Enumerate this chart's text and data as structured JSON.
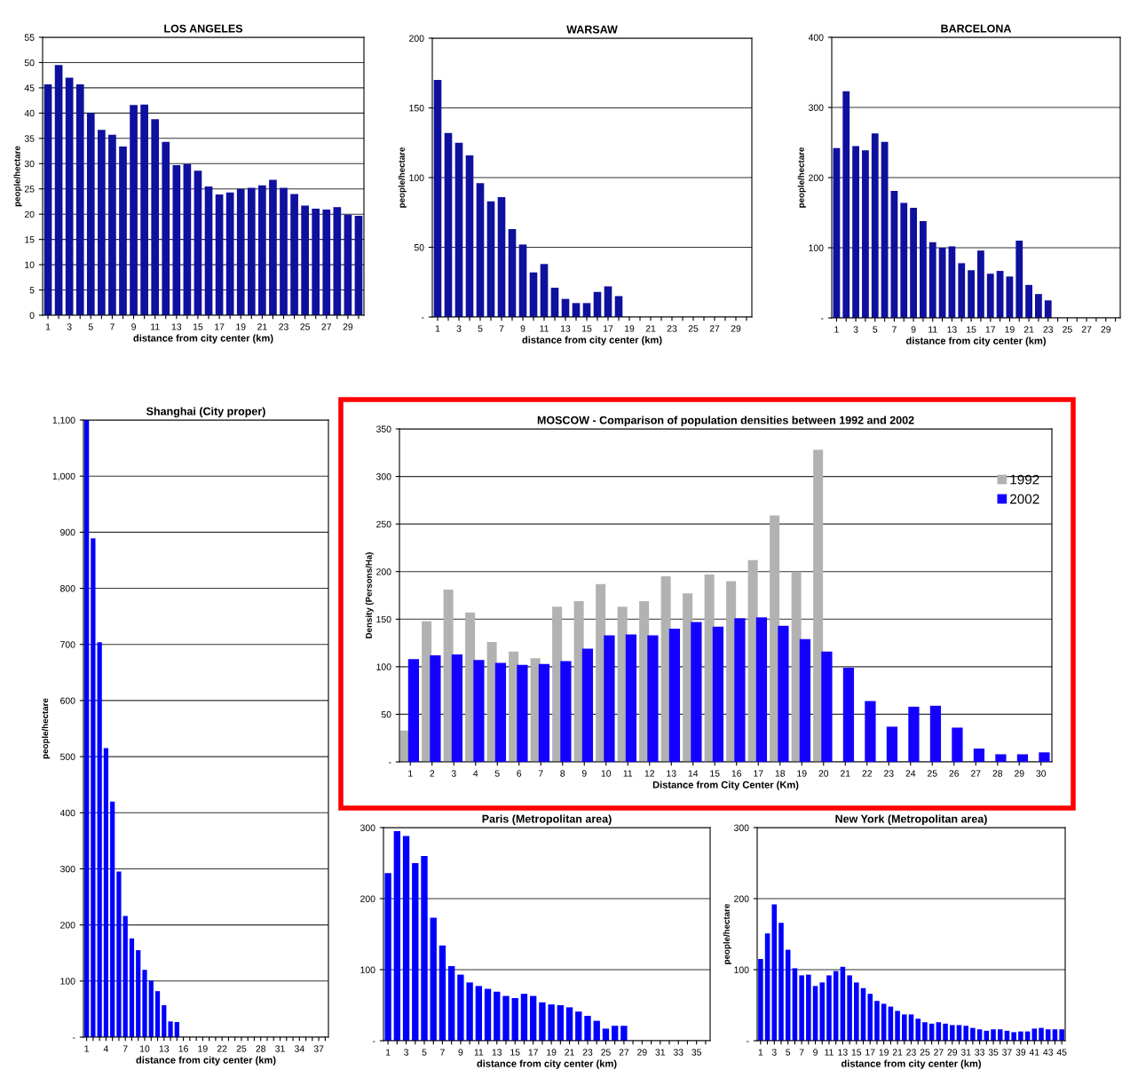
{
  "chart_data": [
    {
      "type": "bar",
      "title": "LOS ANGELES",
      "xlabel": "distance from city center (km)",
      "ylabel": "people/hectare",
      "color": "#10109e",
      "categories": [
        "1",
        null,
        "3",
        null,
        "5",
        null,
        "7",
        null,
        "9",
        null,
        "11",
        null,
        "13",
        null,
        "15",
        null,
        "17",
        null,
        "19",
        null,
        "21",
        null,
        "23",
        null,
        "25",
        null,
        "27",
        null,
        "29",
        null
      ],
      "values": [
        45.7,
        49.5,
        47,
        45.7,
        40,
        36.7,
        35.7,
        33.4,
        41.6,
        41.7,
        38.8,
        34.3,
        29.7,
        29.9,
        28.6,
        25.5,
        23.9,
        24.3,
        25,
        25.2,
        25.7,
        26.8,
        25.2,
        24,
        21.7,
        21.1,
        20.9,
        21.4,
        19.9,
        19.7
      ],
      "ylim": [
        0,
        55
      ],
      "yticks": [
        0,
        5,
        10,
        15,
        20,
        25,
        30,
        35,
        40,
        45,
        50,
        55
      ],
      "grid": "y"
    },
    {
      "type": "bar",
      "title": "WARSAW",
      "xlabel": "distance from city center (km)",
      "ylabel": "people/hectare",
      "color": "#10109e",
      "categories": [
        "1",
        null,
        "3",
        null,
        "5",
        null,
        "7",
        null,
        "9",
        null,
        "11",
        null,
        "13",
        null,
        "15",
        null,
        "17",
        null,
        "19",
        null,
        "21",
        null,
        "23",
        null,
        "25",
        null,
        "27",
        null,
        "29",
        null
      ],
      "values": [
        170,
        132,
        125,
        116,
        96,
        83,
        86,
        63,
        52,
        32,
        38,
        21,
        13,
        10,
        10,
        18,
        22,
        15,
        0,
        0,
        0,
        0,
        0,
        0,
        0,
        0,
        0,
        0,
        0,
        0
      ],
      "ylim": [
        0,
        200
      ],
      "yticks": [
        {
          "value": 0,
          "label": "-"
        },
        50,
        100,
        150,
        200
      ],
      "grid": "y"
    },
    {
      "type": "bar",
      "title": "BARCELONA",
      "xlabel": "distance from city center (km)",
      "ylabel": "people/hectare",
      "color": "#10109e",
      "categories": [
        "1",
        null,
        "3",
        null,
        "5",
        null,
        "7",
        null,
        "9",
        null,
        "11",
        null,
        "13",
        null,
        "15",
        null,
        "17",
        null,
        "19",
        null,
        "21",
        null,
        "23",
        null,
        "25",
        null,
        "27",
        null,
        "29",
        null
      ],
      "values": [
        242,
        323,
        245,
        239,
        263,
        251,
        181,
        164,
        157,
        138,
        108,
        100,
        102,
        78,
        68,
        96,
        63,
        67,
        59,
        110,
        47,
        34,
        25,
        0,
        0,
        0,
        0,
        0,
        0,
        0
      ],
      "ylim": [
        0,
        400
      ],
      "yticks": [
        {
          "value": 0,
          "label": "-"
        },
        100,
        200,
        300,
        400
      ],
      "grid": "y"
    },
    {
      "type": "bar",
      "title": "Shanghai (City proper)",
      "xlabel": "distance from city center (km)",
      "ylabel": "people/hectare",
      "color": "#0000ff",
      "categories": [
        "1",
        null,
        null,
        "4",
        null,
        null,
        "7",
        null,
        null,
        "10",
        null,
        null,
        "13",
        null,
        null,
        "16",
        null,
        null,
        "19",
        null,
        null,
        "22",
        null,
        null,
        "25",
        null,
        null,
        "28",
        null,
        null,
        "31",
        null,
        null,
        "34",
        null,
        null,
        "37",
        null
      ],
      "values": [
        1100,
        889,
        704,
        515,
        420,
        295,
        216,
        176,
        155,
        120,
        101,
        82,
        57,
        28,
        27,
        0,
        0,
        0,
        0,
        0,
        0,
        0,
        0,
        0,
        0,
        0,
        0,
        0,
        0,
        0,
        0,
        0,
        0,
        0,
        0,
        0,
        0,
        0
      ],
      "ylim": [
        0,
        1100
      ],
      "yticks": [
        {
          "value": 0,
          "label": "-"
        },
        100,
        200,
        300,
        400,
        500,
        600,
        700,
        800,
        900,
        {
          "value": 1000,
          "label": "1,000"
        },
        {
          "value": 1100,
          "label": "1,100"
        }
      ],
      "grid": "y"
    },
    {
      "type": "bar",
      "title": "MOSCOW - Comparison of population densities between 1992 and 2002",
      "xlabel": "Distance from City Center (Km)",
      "ylabel": "Density (Persons/Ha)",
      "categories": [
        "1",
        "2",
        "3",
        "4",
        "5",
        "6",
        "7",
        "8",
        "9",
        "10",
        "11",
        "12",
        "13",
        "14",
        "15",
        "16",
        "17",
        "18",
        "19",
        "20",
        "21",
        "22",
        "23",
        "24",
        "25",
        "26",
        "27",
        "28",
        "29",
        "30"
      ],
      "series": [
        {
          "name": "1992",
          "color": "#b2b2b2",
          "values": [
            33,
            148,
            181,
            157,
            126,
            116,
            109,
            163,
            169,
            187,
            163,
            169,
            195,
            177,
            197,
            190,
            212,
            259,
            200,
            328,
            null,
            null,
            null,
            null,
            null,
            null,
            null,
            null,
            null,
            null
          ]
        },
        {
          "name": "2002",
          "color": "#1400ff",
          "values": [
            108,
            112,
            113,
            107,
            104,
            102,
            103,
            106,
            119,
            133,
            134,
            133,
            140,
            147,
            142,
            151,
            152,
            143,
            129,
            116,
            99,
            64,
            37,
            58,
            59,
            36,
            14,
            8,
            8,
            10
          ]
        }
      ],
      "ylim": [
        0,
        350
      ],
      "yticks": [
        {
          "value": 0,
          "label": "-"
        },
        50,
        100,
        150,
        200,
        250,
        300,
        350
      ],
      "grid": "y",
      "legend": "top right"
    },
    {
      "type": "bar",
      "title": "Paris (Metropolitan area)",
      "xlabel": "distance from city center (km)",
      "color": "#0000ff",
      "categories": [
        "1",
        null,
        "3",
        null,
        "5",
        null,
        "7",
        null,
        "9",
        null,
        "11",
        null,
        "13",
        null,
        "15",
        null,
        "17",
        null,
        "19",
        null,
        "21",
        null,
        "23",
        null,
        "25",
        null,
        "27",
        null,
        "29",
        null,
        "31",
        null,
        "33",
        null,
        "35",
        null
      ],
      "values": [
        236,
        295,
        288,
        250,
        260,
        173,
        134,
        105,
        93,
        82,
        77,
        73,
        69,
        63,
        60,
        66,
        63,
        54,
        51,
        50,
        47,
        41,
        35,
        28,
        17,
        21,
        21,
        0,
        0,
        0,
        0,
        0,
        0,
        0,
        0,
        0
      ],
      "ylim": [
        0,
        300
      ],
      "yticks": [
        {
          "value": 0,
          "label": "-"
        },
        100,
        200,
        300
      ],
      "grid": "y"
    },
    {
      "type": "bar",
      "title": "New York (Metropolitan area)",
      "xlabel": "distance from city center (km)",
      "ylabel": "people/hectare",
      "color": "#0000ff",
      "categories": [
        "1",
        null,
        "3",
        null,
        "5",
        null,
        "7",
        null,
        "9",
        null,
        "11",
        null,
        "13",
        null,
        "15",
        null,
        "17",
        null,
        "19",
        null,
        "21",
        null,
        "23",
        null,
        "25",
        null,
        "27",
        null,
        "29",
        null,
        "31",
        null,
        "33",
        null,
        "35",
        null,
        "37",
        null,
        "39",
        null,
        "41",
        null,
        "43",
        null,
        "45"
      ],
      "values": [
        115,
        151,
        192,
        166,
        128,
        102,
        92,
        93,
        77,
        82,
        92,
        98,
        104,
        92,
        82,
        74,
        66,
        56,
        52,
        48,
        42,
        37,
        37,
        31,
        26,
        24,
        26,
        24,
        22,
        22,
        21,
        18,
        16,
        14,
        16,
        16,
        14,
        12,
        13,
        13,
        17,
        18,
        16,
        16,
        16
      ],
      "ylim": [
        0,
        300
      ],
      "yticks": [
        {
          "value": 0,
          "label": "-"
        },
        100,
        200,
        300
      ],
      "grid": "y"
    }
  ]
}
